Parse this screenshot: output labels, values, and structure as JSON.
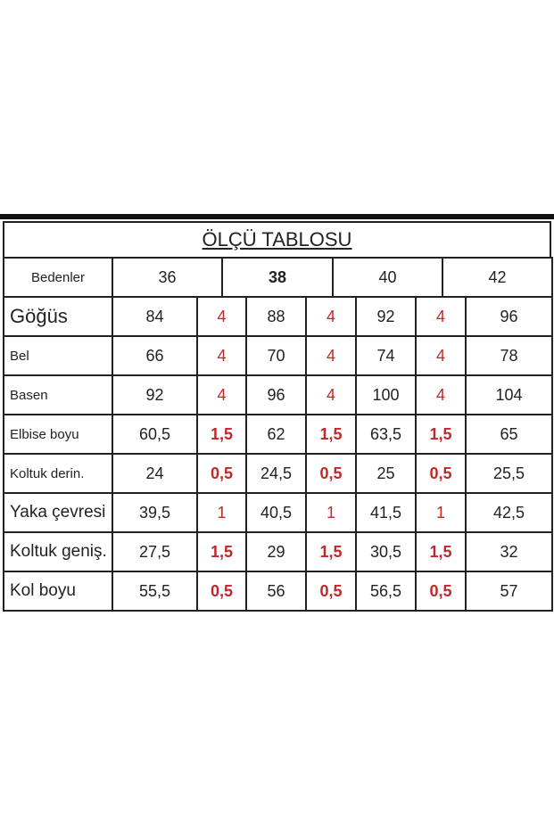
{
  "table": {
    "title": "ÖLÇÜ TABLOSU",
    "header": [
      "Bedenler",
      "36",
      "38",
      "40",
      "42"
    ],
    "rows": [
      {
        "label": "Göğüs",
        "cells": [
          "84",
          "4",
          "88",
          "4",
          "92",
          "4",
          "96"
        ]
      },
      {
        "label": "Bel",
        "cells": [
          "66",
          "4",
          "70",
          "4",
          "74",
          "4",
          "78"
        ]
      },
      {
        "label": "Basen",
        "cells": [
          "92",
          "4",
          "96",
          "4",
          "100",
          "4",
          "104"
        ]
      },
      {
        "label": "Elbise boyu",
        "cells": [
          "60,5",
          "1,5",
          "62",
          "1,5",
          "63,5",
          "1,5",
          "65"
        ]
      },
      {
        "label": "Koltuk derin.",
        "cells": [
          "24",
          "0,5",
          "24,5",
          "0,5",
          "25",
          "0,5",
          "25,5"
        ]
      },
      {
        "label": "Yaka çevresi",
        "cells": [
          "39,5",
          "1",
          "40,5",
          "1",
          "41,5",
          "1",
          "42,5"
        ]
      },
      {
        "label": "Koltuk geniş.",
        "cells": [
          "27,5",
          "1,5",
          "29",
          "1,5",
          "30,5",
          "1,5",
          "32"
        ]
      },
      {
        "label": "Kol boyu",
        "cells": [
          "55,5",
          "0,5",
          "56",
          "0,5",
          "56,5",
          "0,5",
          "57"
        ]
      }
    ]
  }
}
